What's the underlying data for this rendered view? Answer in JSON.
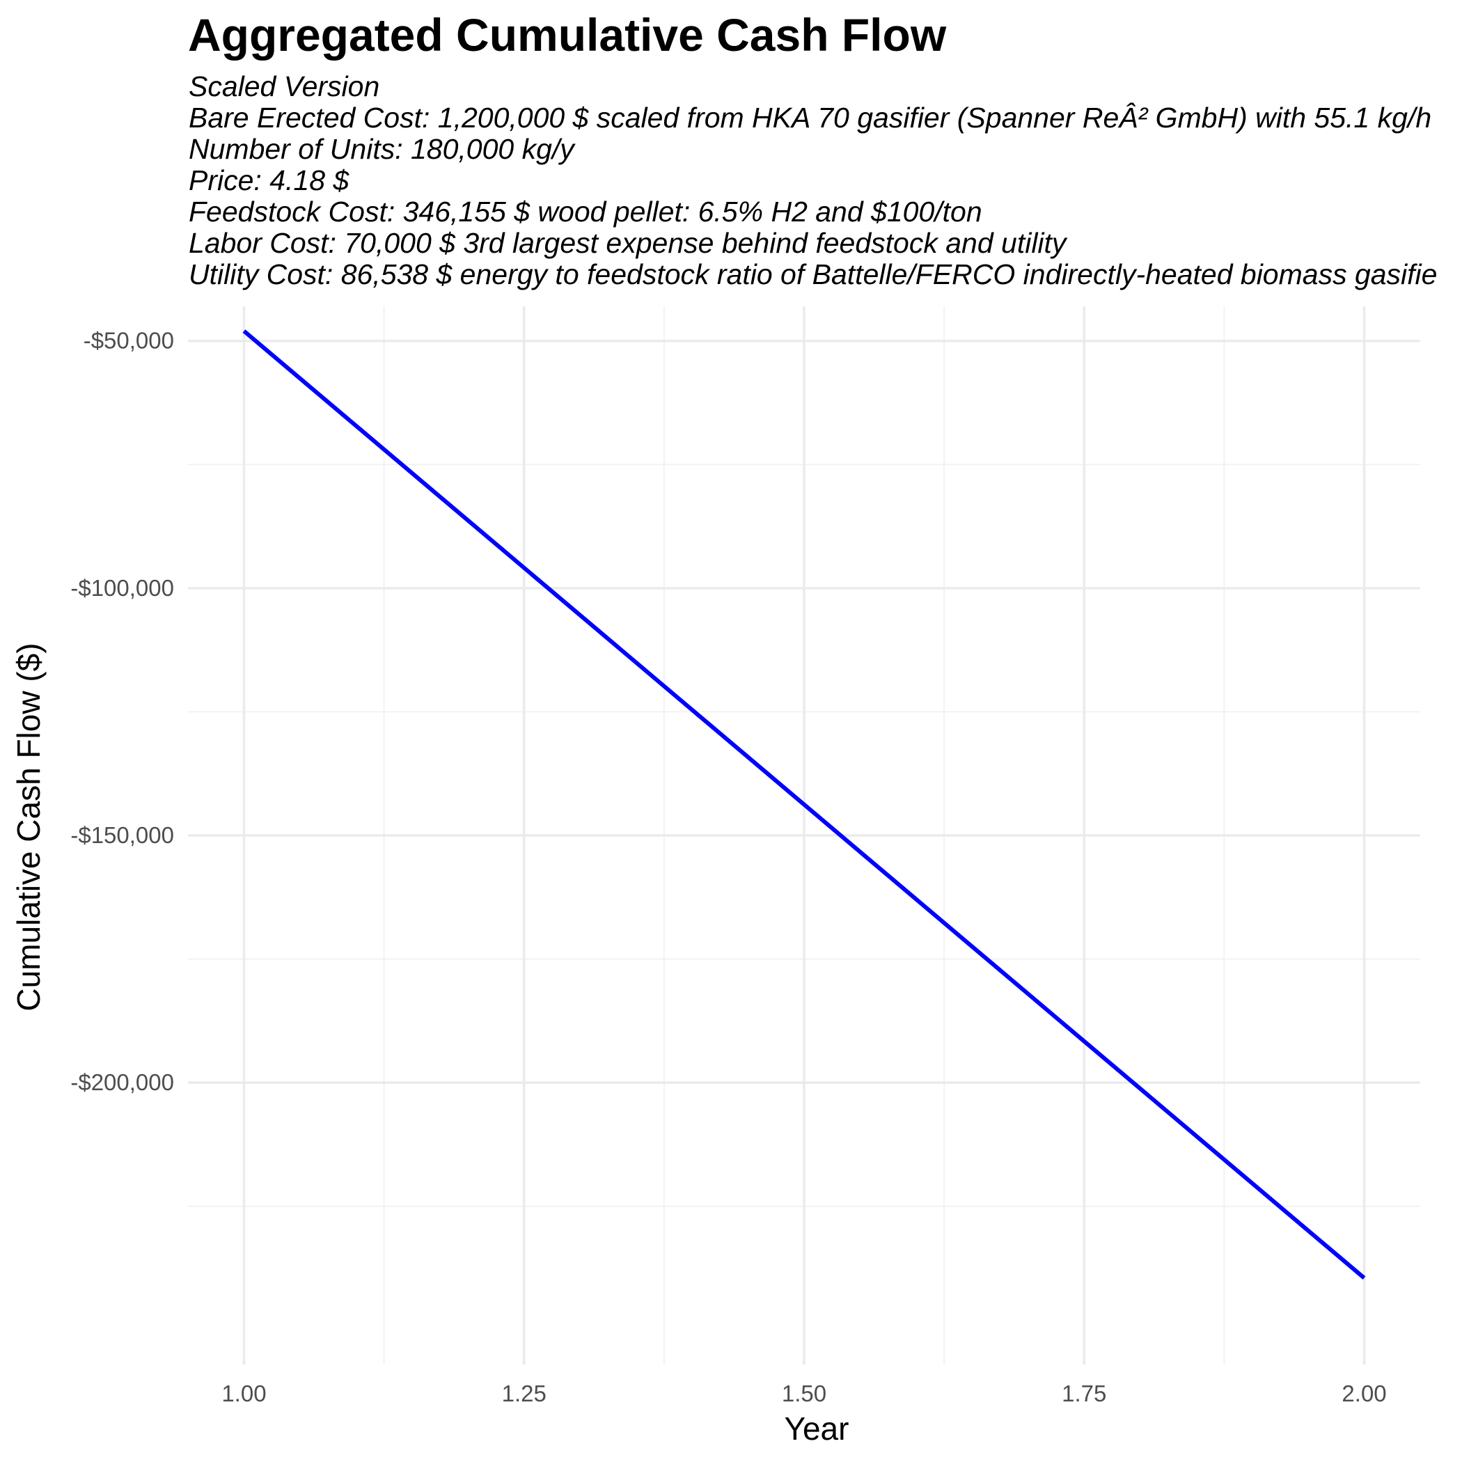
{
  "chart_data": {
    "type": "line",
    "title": "Aggregated Cumulative Cash Flow",
    "subtitle_lines": [
      "Scaled Version",
      "Bare Erected Cost: 1,200,000 $ scaled from HKA 70 gasifier (Spanner ReÂ² GmbH) with 55.1 kg/h",
      "Number of Units: 180,000 kg/y",
      "Price: 4.18 $",
      "Feedstock Cost: 346,155 $ wood pellet: 6.5% H2 and $100/ton",
      "Labor Cost: 70,000 $ 3rd largest expense behind feedstock and utility",
      "Utility Cost: 86,538 $ energy to feedstock ratio of Battelle/FERCO indirectly-heated biomass gasifie"
    ],
    "xlabel": "Year",
    "ylabel": "Cumulative Cash Flow ($)",
    "xlim": [
      0.95,
      2.05
    ],
    "ylim": [
      -257000,
      -43000
    ],
    "x_ticks": [
      1.0,
      1.25,
      1.5,
      1.75,
      2.0
    ],
    "x_tick_labels": [
      "1.00",
      "1.25",
      "1.50",
      "1.75",
      "2.00"
    ],
    "y_ticks": [
      -50000,
      -100000,
      -150000,
      -200000
    ],
    "y_tick_labels": [
      "-$50,000",
      "-$100,000",
      "-$150,000",
      "-$200,000"
    ],
    "y_minor_ticks": [
      -75000,
      -125000,
      -175000,
      -225000
    ],
    "x_minor_ticks": [
      1.125,
      1.375,
      1.625,
      1.875
    ],
    "grid": true,
    "legend": "none",
    "series": [
      {
        "color": "#0000ff",
        "x": [
          1,
          2
        ],
        "y": [
          -48000,
          -239500
        ]
      }
    ]
  }
}
